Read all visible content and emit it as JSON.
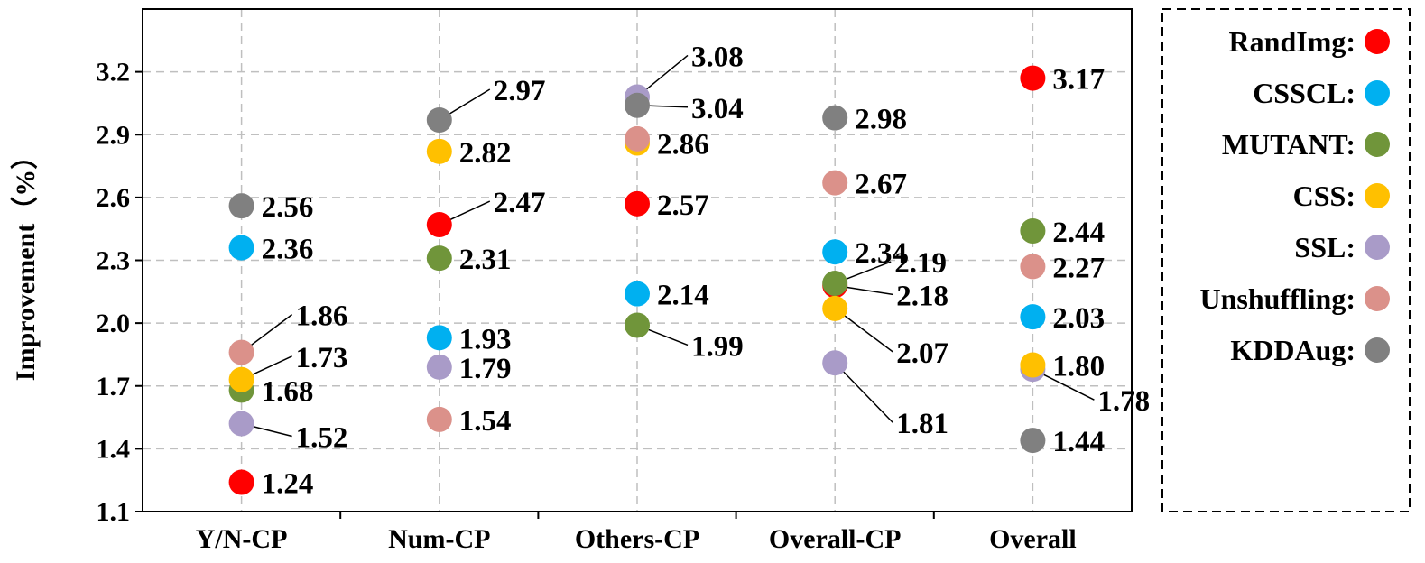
{
  "chart_data": {
    "type": "scatter",
    "ylabel": "Improvement（%）",
    "xlabel": "",
    "categories": [
      "Y/N-CP",
      "Num-CP",
      "Others-CP",
      "Overall-CP",
      "Overall"
    ],
    "ylim": [
      1.1,
      3.5
    ],
    "yticks": [
      "1.1",
      "1.4",
      "1.7",
      "2.0",
      "2.3",
      "2.6",
      "2.9",
      "3.2"
    ],
    "grid": true,
    "legend_position": "right",
    "series": [
      {
        "name": "RandImg:",
        "color": "#ff0000",
        "values": [
          1.24,
          2.47,
          2.57,
          2.18,
          3.17
        ]
      },
      {
        "name": "CSSCL:",
        "color": "#00b0f0",
        "values": [
          2.36,
          1.93,
          2.14,
          2.34,
          2.03
        ]
      },
      {
        "name": "MUTANT:",
        "color": "#70953a",
        "values": [
          1.68,
          2.31,
          1.99,
          2.19,
          2.44
        ]
      },
      {
        "name": "CSS:",
        "color": "#ffc000",
        "values": [
          1.73,
          2.82,
          2.86,
          2.07,
          1.8
        ]
      },
      {
        "name": "SSL:",
        "color": "#a99bc8",
        "values": [
          1.52,
          1.79,
          3.08,
          1.81,
          1.78
        ]
      },
      {
        "name": "Unshuffling:",
        "color": "#db918a",
        "values": [
          1.86,
          1.54,
          2.88,
          2.67,
          2.27
        ]
      },
      {
        "name": "KDDAug:",
        "color": "#808080",
        "values": [
          2.56,
          2.97,
          3.04,
          2.98,
          1.44
        ]
      }
    ],
    "data_labels": [
      {
        "series": 0,
        "cat": 0,
        "text": "1.24"
      },
      {
        "series": 0,
        "cat": 1,
        "text": "2.47"
      },
      {
        "series": 0,
        "cat": 2,
        "text": "2.57"
      },
      {
        "series": 0,
        "cat": 3,
        "text": "2.18"
      },
      {
        "series": 0,
        "cat": 4,
        "text": "3.17"
      },
      {
        "series": 1,
        "cat": 0,
        "text": "2.36"
      },
      {
        "series": 1,
        "cat": 1,
        "text": "1.93"
      },
      {
        "series": 1,
        "cat": 2,
        "text": "2.14"
      },
      {
        "series": 1,
        "cat": 3,
        "text": "2.34"
      },
      {
        "series": 1,
        "cat": 4,
        "text": "2.03"
      },
      {
        "series": 2,
        "cat": 0,
        "text": "1.68"
      },
      {
        "series": 2,
        "cat": 1,
        "text": "2.31"
      },
      {
        "series": 2,
        "cat": 2,
        "text": "1.99"
      },
      {
        "series": 2,
        "cat": 3,
        "text": "2.19"
      },
      {
        "series": 2,
        "cat": 4,
        "text": "2.44"
      },
      {
        "series": 3,
        "cat": 0,
        "text": "1.73"
      },
      {
        "series": 3,
        "cat": 1,
        "text": "2.82"
      },
      {
        "series": 3,
        "cat": 2,
        "text": "2.86"
      },
      {
        "series": 3,
        "cat": 3,
        "text": "2.07"
      },
      {
        "series": 3,
        "cat": 4,
        "text": "1.80"
      },
      {
        "series": 4,
        "cat": 0,
        "text": "1.52"
      },
      {
        "series": 4,
        "cat": 1,
        "text": "1.79"
      },
      {
        "series": 4,
        "cat": 2,
        "text": "3.08"
      },
      {
        "series": 4,
        "cat": 3,
        "text": "1.81"
      },
      {
        "series": 4,
        "cat": 4,
        "text": "1.78"
      },
      {
        "series": 5,
        "cat": 0,
        "text": "1.86"
      },
      {
        "series": 5,
        "cat": 1,
        "text": "1.54"
      },
      {
        "series": 5,
        "cat": 3,
        "text": "2.67"
      },
      {
        "series": 5,
        "cat": 4,
        "text": "2.27"
      },
      {
        "series": 6,
        "cat": 0,
        "text": "2.56"
      },
      {
        "series": 6,
        "cat": 1,
        "text": "2.97"
      },
      {
        "series": 6,
        "cat": 2,
        "text": "3.04"
      },
      {
        "series": 6,
        "cat": 3,
        "text": "2.98"
      },
      {
        "series": 6,
        "cat": 4,
        "text": "1.44"
      }
    ]
  }
}
